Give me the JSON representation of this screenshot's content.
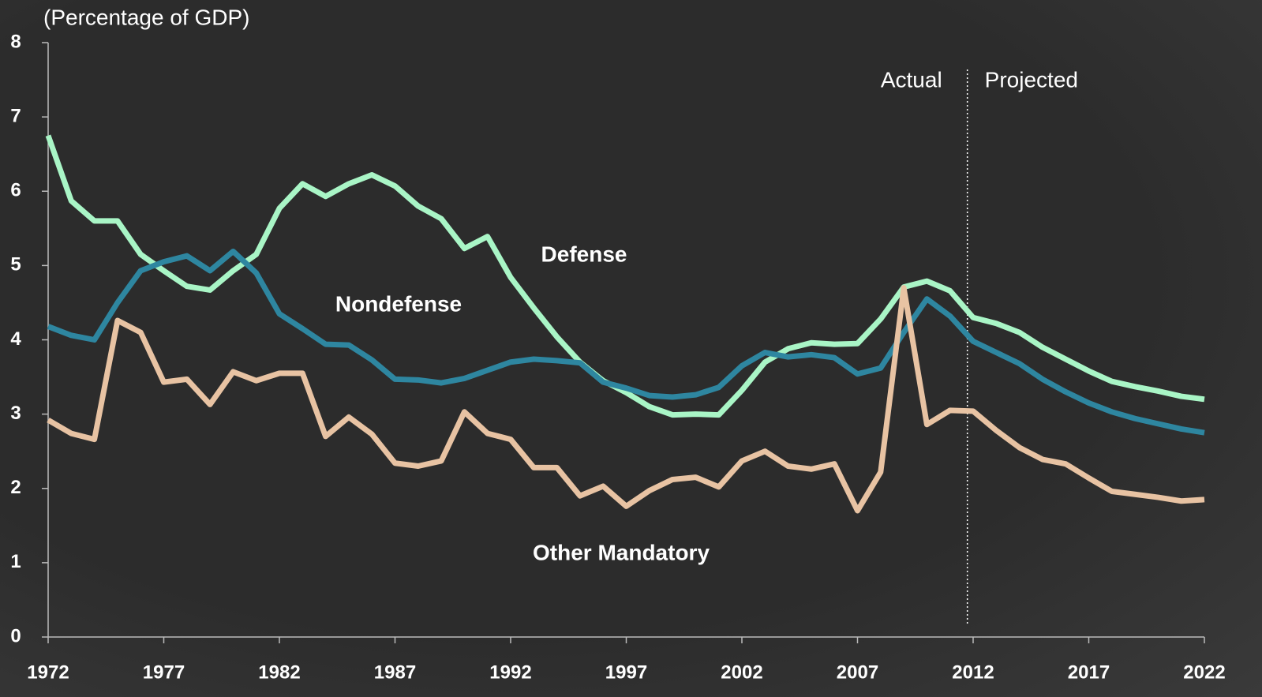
{
  "chart_data": {
    "type": "line",
    "y_label": "(Percentage of GDP)",
    "x": [
      1972,
      1973,
      1974,
      1975,
      1976,
      1977,
      1978,
      1979,
      1980,
      1981,
      1982,
      1983,
      1984,
      1985,
      1986,
      1987,
      1988,
      1989,
      1990,
      1991,
      1992,
      1993,
      1994,
      1995,
      1996,
      1997,
      1998,
      1999,
      2000,
      2001,
      2002,
      2003,
      2004,
      2005,
      2006,
      2007,
      2008,
      2009,
      2010,
      2011,
      2012,
      2013,
      2014,
      2015,
      2016,
      2017,
      2018,
      2019,
      2020,
      2021,
      2022
    ],
    "series": [
      {
        "name": "Defense",
        "color": "#a9f5c6",
        "values": [
          6.75,
          5.87,
          5.6,
          5.6,
          5.15,
          4.93,
          4.72,
          4.67,
          4.93,
          5.15,
          5.77,
          6.1,
          5.93,
          6.1,
          6.22,
          6.07,
          5.8,
          5.63,
          5.23,
          5.39,
          4.84,
          4.43,
          4.04,
          3.7,
          3.45,
          3.29,
          3.1,
          2.99,
          3.0,
          2.99,
          3.32,
          3.7,
          3.88,
          3.96,
          3.94,
          3.95,
          4.28,
          4.71,
          4.79,
          4.66,
          4.3,
          4.22,
          4.1,
          3.9,
          3.74,
          3.58,
          3.44,
          3.37,
          3.31,
          3.24,
          3.2
        ]
      },
      {
        "name": "Nondefense",
        "color": "#2e86a0",
        "values": [
          4.18,
          4.06,
          4.0,
          4.5,
          4.93,
          5.05,
          5.13,
          4.93,
          5.19,
          4.9,
          4.35,
          4.15,
          3.94,
          3.93,
          3.73,
          3.47,
          3.46,
          3.42,
          3.48,
          3.59,
          3.7,
          3.74,
          3.72,
          3.69,
          3.43,
          3.35,
          3.25,
          3.23,
          3.26,
          3.36,
          3.65,
          3.83,
          3.77,
          3.8,
          3.76,
          3.54,
          3.62,
          4.1,
          4.55,
          4.32,
          3.98,
          3.83,
          3.68,
          3.47,
          3.3,
          3.15,
          3.03,
          2.94,
          2.87,
          2.8,
          2.75
        ]
      },
      {
        "name": "Other Mandatory",
        "color": "#e8c3a3",
        "values": [
          2.92,
          2.74,
          2.66,
          4.26,
          4.1,
          3.43,
          3.47,
          3.13,
          3.57,
          3.45,
          3.55,
          3.55,
          2.7,
          2.96,
          2.73,
          2.34,
          2.3,
          2.37,
          3.03,
          2.74,
          2.66,
          2.28,
          2.28,
          1.9,
          2.03,
          1.76,
          1.97,
          2.12,
          2.15,
          2.02,
          2.37,
          2.5,
          2.3,
          2.26,
          2.33,
          1.7,
          2.22,
          4.7,
          2.86,
          3.05,
          3.04,
          2.78,
          2.55,
          2.39,
          2.33,
          2.14,
          1.96,
          1.92,
          1.88,
          1.83,
          1.85
        ]
      }
    ],
    "xlim": [
      1972,
      2022
    ],
    "xticks": [
      1972,
      1977,
      1982,
      1987,
      1992,
      1997,
      2002,
      2007,
      2012,
      2017,
      2022
    ],
    "ylim": [
      0,
      8
    ],
    "yticks": [
      0,
      1,
      2,
      3,
      4,
      5,
      6,
      7,
      8
    ],
    "divider": {
      "x": 2011.75,
      "left_label": "Actual",
      "right_label": "Projected"
    }
  }
}
